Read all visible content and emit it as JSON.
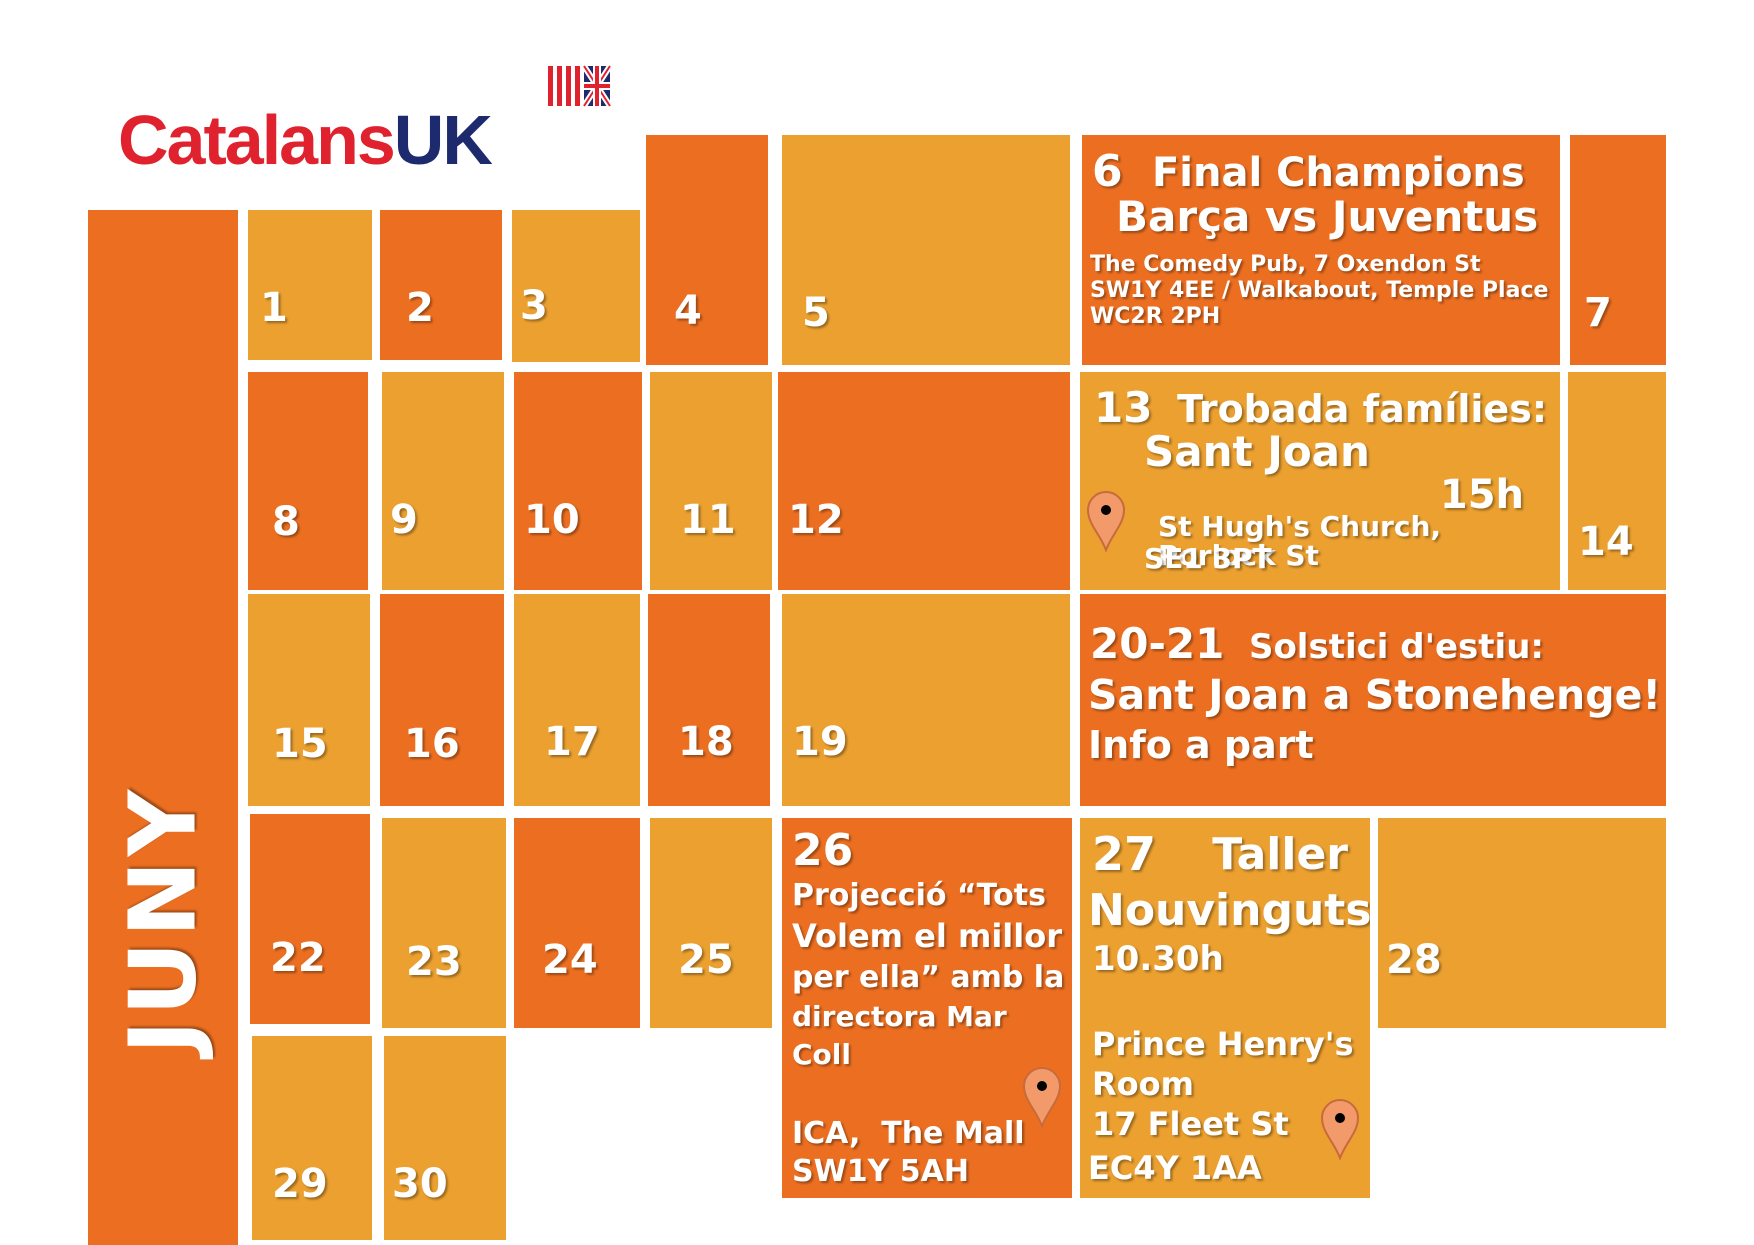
{
  "logo": {
    "part1": "Catalans",
    "part2": "UK"
  },
  "month": "JUNY",
  "days": {
    "d1": "1",
    "d2": "2",
    "d3": "3",
    "d4": "4",
    "d5": "5",
    "d7": "7",
    "d8": "8",
    "d9": "9",
    "d10": "10",
    "d11": "11",
    "d12": "12",
    "d14": "14",
    "d15": "15",
    "d16": "16",
    "d17": "17",
    "d18": "18",
    "d19": "19",
    "d22": "22",
    "d23": "23",
    "d24": "24",
    "d25": "25",
    "d28": "28",
    "d29": "29",
    "d30": "30"
  },
  "events": {
    "e6": {
      "number": "6",
      "title": "Final Champions",
      "subtitle": "Barça vs Juventus",
      "address1": "The Comedy Pub, 7 Oxendon St",
      "address2": "SW1Y 4EE / Walkabout, Temple Place",
      "address3": "WC2R 2PH"
    },
    "e13": {
      "number": "13",
      "title": "Trobada famílies:",
      "subtitle": "Sant Joan",
      "time": "15h",
      "address1": "St Hugh's Church, Porlock St",
      "address2": "SE1 3PT"
    },
    "e20": {
      "number": "20-21",
      "title": "Solstici d'estiu:",
      "subtitle": "Sant Joan a Stonehenge!",
      "note": "Info a part"
    },
    "e26": {
      "number": "26",
      "line1": "Projecció “Tots",
      "line2": "Volem el millor",
      "line3": "per ella” amb la",
      "line4": "directora Mar",
      "line5": "Coll",
      "address1": "ICA,  The Mall",
      "address2": "SW1Y 5AH"
    },
    "e27": {
      "number": "27",
      "title": "Taller",
      "subtitle": "Nouvinguts",
      "time": "10.30h",
      "address1": "Prince Henry's",
      "address2": "Room",
      "address3": "17 Fleet St",
      "address4": "EC4Y 1AA"
    }
  },
  "colors": {
    "dark_orange": "#ec6f21",
    "light_orange": "#eba030",
    "logo_red": "#e0212e",
    "logo_navy": "#1d2b6e",
    "pin": "#f29a6a"
  },
  "icons": [
    "uk-flag-icon",
    "map-pin-icon"
  ]
}
